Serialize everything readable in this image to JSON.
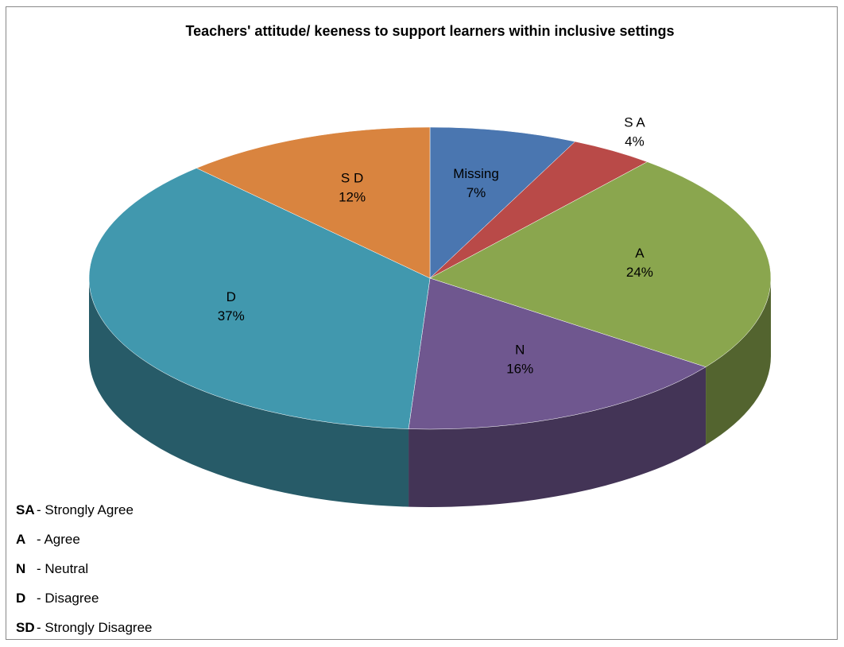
{
  "chart_data": {
    "type": "pie",
    "title": "Teachers' attitude/ keeness to support learners within inclusive settings",
    "categories": [
      "Missing",
      "S A",
      "A",
      "N",
      "D",
      "S D"
    ],
    "values": [
      7,
      4,
      24,
      16,
      37,
      12
    ],
    "value_labels": [
      "7%",
      "4%",
      "24%",
      "16%",
      "37%",
      "12%"
    ],
    "colors": [
      "#4a76b0",
      "#b94a48",
      "#8aa64e",
      "#6f578f",
      "#4198ae",
      "#d9843f"
    ],
    "three_d": true
  },
  "legend_notes": [
    {
      "abbr": "SA",
      "text": "- Strongly Agree"
    },
    {
      "abbr": "A",
      "text": "- Agree"
    },
    {
      "abbr": "N",
      "text": "- Neutral"
    },
    {
      "abbr": "D",
      "text": "- Disagree"
    },
    {
      "abbr": "SD",
      "text": "- Strongly Disagree"
    }
  ]
}
